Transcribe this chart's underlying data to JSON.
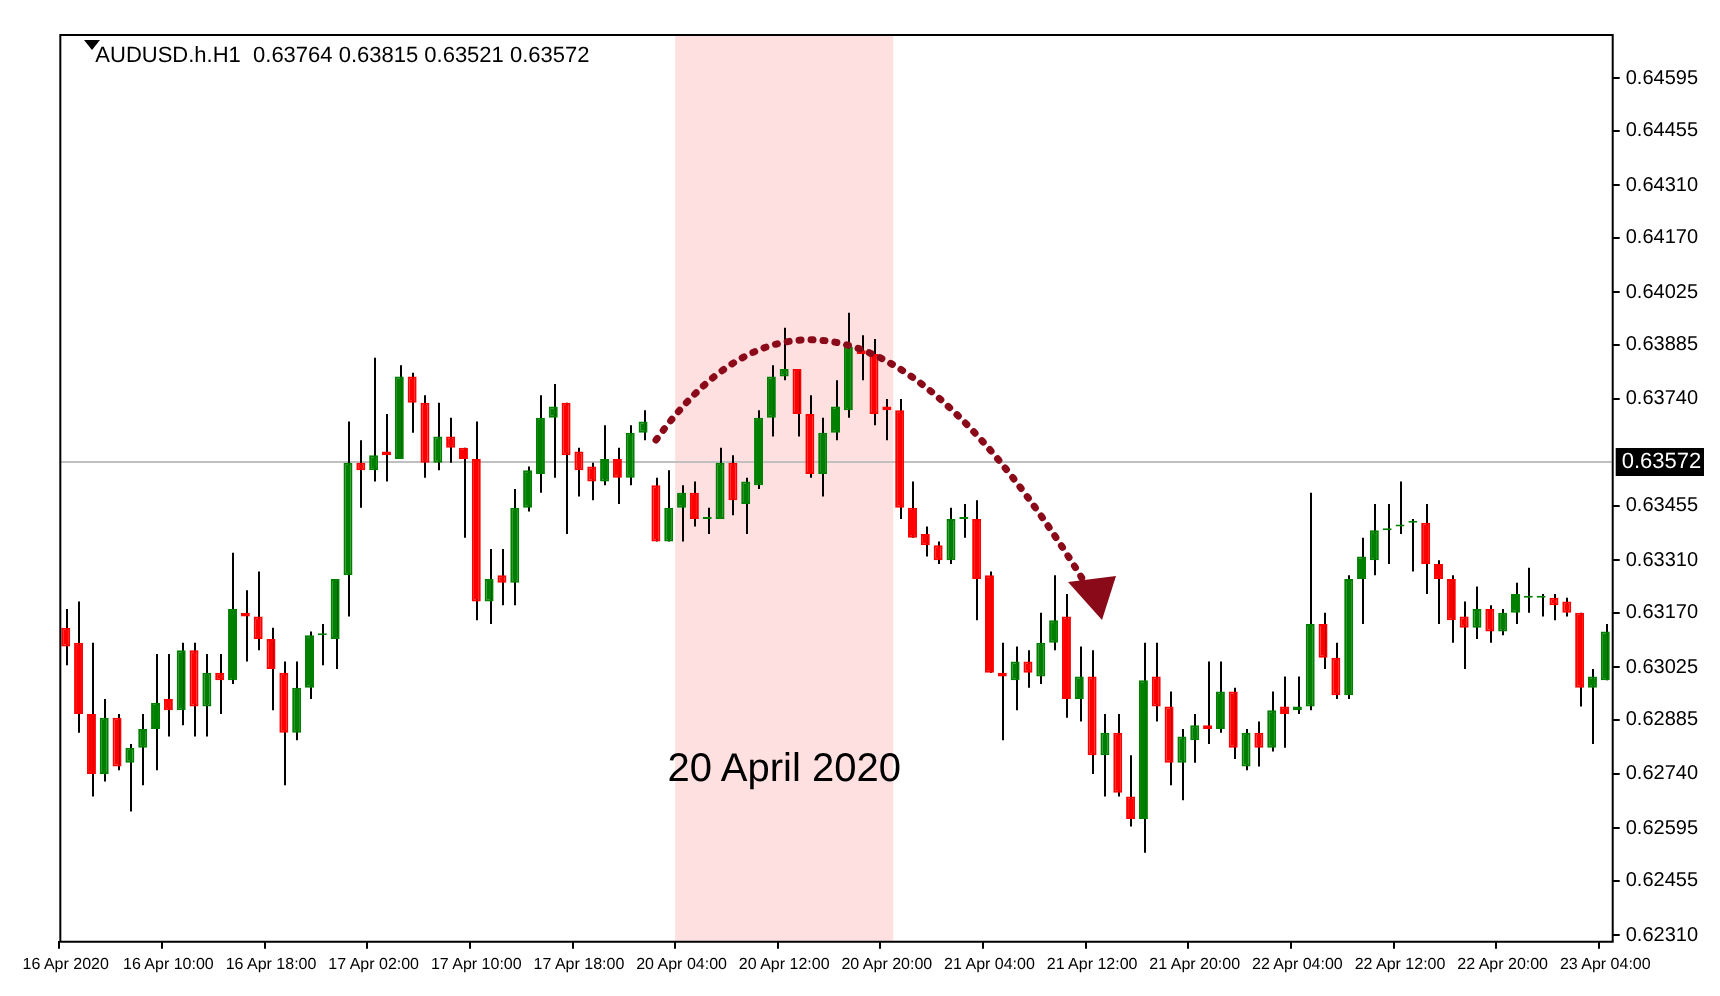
{
  "chart_data": {
    "type": "candlestick",
    "title": "AUDUSD.h.H1  0.63764 0.63815 0.63521 0.63572",
    "categories": [
      "16 Apr 2020",
      null,
      null,
      null,
      null,
      null,
      null,
      null,
      "16 Apr 10:00",
      null,
      null,
      null,
      null,
      null,
      null,
      null,
      "16 Apr 18:00",
      null,
      null,
      null,
      null,
      null,
      null,
      null,
      "17 Apr 02:00",
      null,
      null,
      null,
      null,
      null,
      null,
      null,
      "17 Apr 10:00",
      null,
      null,
      null,
      null,
      null,
      null,
      null,
      "17 Apr 18:00",
      null,
      null,
      null,
      null,
      null,
      null,
      null,
      "20 Apr 04:00",
      null,
      null,
      null,
      null,
      null,
      null,
      null,
      "20 Apr 12:00",
      null,
      null,
      null,
      null,
      null,
      null,
      null,
      "20 Apr 20:00",
      null,
      null,
      null,
      null,
      null,
      null,
      null,
      "21 Apr 04:00",
      null,
      null,
      null,
      null,
      null,
      null,
      null,
      "21 Apr 12:00",
      null,
      null,
      null,
      null,
      null,
      null,
      null,
      "21 Apr 20:00",
      null,
      null,
      null,
      null,
      null,
      null,
      null,
      "22 Apr 04:00",
      null,
      null,
      null,
      null,
      null,
      null,
      null,
      "22 Apr 12:00",
      null,
      null,
      null,
      null,
      null,
      null,
      null,
      "22 Apr 20:00",
      null,
      null,
      null,
      null,
      null,
      null,
      null,
      "23 Apr 04:00"
    ],
    "ohlc": [
      [
        0.6313,
        0.6318,
        0.6303,
        0.6308
      ],
      [
        0.6309,
        0.632,
        0.6285,
        0.629
      ],
      [
        0.629,
        0.6309,
        0.6268,
        0.6274
      ],
      [
        0.6274,
        0.6294,
        0.6272,
        0.6289
      ],
      [
        0.6289,
        0.629,
        0.6275,
        0.6276
      ],
      [
        0.6277,
        0.6282,
        0.6264,
        0.6281
      ],
      [
        0.6281,
        0.629,
        0.6271,
        0.6286
      ],
      [
        0.6286,
        0.6306,
        0.6275,
        0.6293
      ],
      [
        0.6294,
        0.6306,
        0.6284,
        0.6291
      ],
      [
        0.6291,
        0.6309,
        0.6287,
        0.6307
      ],
      [
        0.6307,
        0.6309,
        0.6284,
        0.6292
      ],
      [
        0.6292,
        0.6306,
        0.6284,
        0.6301
      ],
      [
        0.6301,
        0.6306,
        0.629,
        0.6299
      ],
      [
        0.6299,
        0.6333,
        0.6298,
        0.6318
      ],
      [
        0.6317,
        0.6323,
        0.6304,
        0.6316
      ],
      [
        0.6316,
        0.6328,
        0.6307,
        0.631
      ],
      [
        0.631,
        0.6313,
        0.6291,
        0.6302
      ],
      [
        0.6301,
        0.6304,
        0.6271,
        0.6285
      ],
      [
        0.6285,
        0.6304,
        0.6283,
        0.6297
      ],
      [
        0.6297,
        0.6312,
        0.6294,
        0.6311
      ],
      [
        0.6311,
        0.6314,
        0.6303,
        0.6311
      ],
      [
        0.631,
        0.6326,
        0.6302,
        0.6326
      ],
      [
        0.6327,
        0.6368,
        0.6316,
        0.6357
      ],
      [
        0.6357,
        0.6363,
        0.6345,
        0.6355
      ],
      [
        0.6355,
        0.6385,
        0.6352,
        0.6359
      ],
      [
        0.636,
        0.637,
        0.6352,
        0.6359
      ],
      [
        0.6358,
        0.6383,
        0.6358,
        0.638
      ],
      [
        0.638,
        0.6381,
        0.6365,
        0.6373
      ],
      [
        0.6373,
        0.6375,
        0.6353,
        0.6357
      ],
      [
        0.6357,
        0.6373,
        0.6355,
        0.6364
      ],
      [
        0.6364,
        0.6369,
        0.6357,
        0.6361
      ],
      [
        0.6361,
        0.6361,
        0.6337,
        0.6358
      ],
      [
        0.6358,
        0.6368,
        0.6315,
        0.632
      ],
      [
        0.632,
        0.6334,
        0.6314,
        0.6326
      ],
      [
        0.6327,
        0.6334,
        0.6319,
        0.6325
      ],
      [
        0.6325,
        0.635,
        0.6319,
        0.6345
      ],
      [
        0.6345,
        0.6356,
        0.6344,
        0.6355
      ],
      [
        0.6354,
        0.6375,
        0.6349,
        0.6369
      ],
      [
        0.6369,
        0.6378,
        0.6353,
        0.6372
      ],
      [
        0.6373,
        0.6373,
        0.6338,
        0.6359
      ],
      [
        0.636,
        0.6361,
        0.6348,
        0.6355
      ],
      [
        0.6356,
        0.6357,
        0.6347,
        0.6352
      ],
      [
        0.6352,
        0.6367,
        0.6351,
        0.6358
      ],
      [
        0.6358,
        0.6361,
        0.6346,
        0.6353
      ],
      [
        0.6353,
        0.6367,
        0.6351,
        0.6365
      ],
      [
        0.6365,
        0.6371,
        0.6363,
        0.6368
      ],
      [
        0.6351,
        0.6353,
        0.6336,
        0.6336
      ],
      [
        0.6336,
        0.6355,
        0.6336,
        0.6345
      ],
      [
        0.6345,
        0.6351,
        0.6336,
        0.6349
      ],
      [
        0.6349,
        0.6352,
        0.634,
        0.6342
      ],
      [
        0.6342,
        0.6345,
        0.6338,
        0.6342
      ],
      [
        0.6342,
        0.6361,
        0.6342,
        0.6357
      ],
      [
        0.6357,
        0.6359,
        0.6343,
        0.6347
      ],
      [
        0.6346,
        0.6353,
        0.6338,
        0.6352
      ],
      [
        0.6351,
        0.6371,
        0.635,
        0.6369
      ],
      [
        0.6369,
        0.6383,
        0.6364,
        0.638
      ],
      [
        0.638,
        0.6393,
        0.6379,
        0.6382
      ],
      [
        0.6382,
        0.6382,
        0.6364,
        0.637
      ],
      [
        0.637,
        0.6375,
        0.6353,
        0.6354
      ],
      [
        0.6354,
        0.6369,
        0.6348,
        0.6365
      ],
      [
        0.6365,
        0.6379,
        0.6363,
        0.6372
      ],
      [
        0.6371,
        0.6397,
        0.6369,
        0.6388
      ],
      [
        0.6387,
        0.6391,
        0.6379,
        0.6386
      ],
      [
        0.6386,
        0.639,
        0.6367,
        0.637
      ],
      [
        0.6372,
        0.6374,
        0.6363,
        0.6371
      ],
      [
        0.6371,
        0.6374,
        0.6342,
        0.6345
      ],
      [
        0.6345,
        0.6352,
        0.6337,
        0.6337
      ],
      [
        0.6338,
        0.634,
        0.6332,
        0.6335
      ],
      [
        0.6335,
        0.6336,
        0.633,
        0.6331
      ],
      [
        0.6331,
        0.6345,
        0.633,
        0.6342
      ],
      [
        0.6342,
        0.6346,
        0.6337,
        0.6342
      ],
      [
        0.6342,
        0.6347,
        0.6315,
        0.6326
      ],
      [
        0.6327,
        0.6328,
        0.6301,
        0.6301
      ],
      [
        0.6301,
        0.6309,
        0.6283,
        0.63
      ],
      [
        0.6299,
        0.6308,
        0.6291,
        0.6304
      ],
      [
        0.6304,
        0.6307,
        0.6297,
        0.6301
      ],
      [
        0.63,
        0.6317,
        0.6298,
        0.6309
      ],
      [
        0.6309,
        0.6327,
        0.6307,
        0.6315
      ],
      [
        0.6316,
        0.6322,
        0.6289,
        0.6294
      ],
      [
        0.6294,
        0.6308,
        0.6288,
        0.63
      ],
      [
        0.63,
        0.6307,
        0.6274,
        0.6279
      ],
      [
        0.6279,
        0.629,
        0.6268,
        0.6285
      ],
      [
        0.6285,
        0.629,
        0.6268,
        0.6269
      ],
      [
        0.6268,
        0.6279,
        0.626,
        0.6262
      ],
      [
        0.6262,
        0.6309,
        0.6253,
        0.6299
      ],
      [
        0.63,
        0.6309,
        0.6288,
        0.6292
      ],
      [
        0.6292,
        0.6296,
        0.6271,
        0.6277
      ],
      [
        0.6277,
        0.6286,
        0.6267,
        0.6284
      ],
      [
        0.6283,
        0.629,
        0.6277,
        0.6287
      ],
      [
        0.6287,
        0.6304,
        0.6282,
        0.6286
      ],
      [
        0.6286,
        0.6304,
        0.6285,
        0.6296
      ],
      [
        0.6296,
        0.6297,
        0.6278,
        0.6281
      ],
      [
        0.6276,
        0.6286,
        0.6275,
        0.6285
      ],
      [
        0.6285,
        0.6288,
        0.6276,
        0.6281
      ],
      [
        0.6281,
        0.6296,
        0.628,
        0.6291
      ],
      [
        0.6292,
        0.63,
        0.6281,
        0.629
      ],
      [
        0.6291,
        0.63,
        0.629,
        0.6292
      ],
      [
        0.6292,
        0.6349,
        0.6291,
        0.6314
      ],
      [
        0.6314,
        0.6317,
        0.6302,
        0.6305
      ],
      [
        0.6305,
        0.6309,
        0.6294,
        0.6295
      ],
      [
        0.6295,
        0.6327,
        0.6294,
        0.6326
      ],
      [
        0.6326,
        0.6337,
        0.6314,
        0.6332
      ],
      [
        0.6331,
        0.6346,
        0.6327,
        0.6339
      ],
      [
        0.6339,
        0.6346,
        0.633,
        0.6339
      ],
      [
        0.634,
        0.6352,
        0.6338,
        0.634
      ],
      [
        0.6341,
        0.6342,
        0.6328,
        0.6341
      ],
      [
        0.6341,
        0.6346,
        0.6322,
        0.633
      ],
      [
        0.633,
        0.6331,
        0.6314,
        0.6326
      ],
      [
        0.6326,
        0.6327,
        0.6309,
        0.6315
      ],
      [
        0.6316,
        0.632,
        0.6302,
        0.6313
      ],
      [
        0.6313,
        0.6324,
        0.631,
        0.6318
      ],
      [
        0.6318,
        0.6319,
        0.6309,
        0.6312
      ],
      [
        0.6312,
        0.6318,
        0.6311,
        0.6317
      ],
      [
        0.6317,
        0.6325,
        0.6314,
        0.6322
      ],
      [
        0.6321,
        0.6329,
        0.6317,
        0.6321
      ],
      [
        0.6321,
        0.6322,
        0.6316,
        0.6321
      ],
      [
        0.6321,
        0.6322,
        0.6315,
        0.6319
      ],
      [
        0.632,
        0.6321,
        0.6316,
        0.6317
      ],
      [
        0.6317,
        0.6317,
        0.6292,
        0.6297
      ],
      [
        0.6297,
        0.6302,
        0.6282,
        0.63
      ],
      [
        0.6299,
        0.6314,
        0.6299,
        0.6312
      ]
    ],
    "colors": [
      "#ff0000",
      "#ff0000",
      "#ff0000",
      "#008000",
      "#ff0000",
      "#008000",
      "#008000",
      "#008000",
      "#ff0000",
      "#008000",
      "#ff0000",
      "#008000",
      "#ff0000",
      "#008000",
      "#ff0000",
      "#ff0000",
      "#ff0000",
      "#ff0000",
      "#008000",
      "#008000",
      "#008000",
      "#008000",
      "#008000",
      "#ff0000",
      "#008000",
      "#ff0000",
      "#008000",
      "#ff0000",
      "#ff0000",
      "#008000",
      "#ff0000",
      "#ff0000",
      "#ff0000",
      "#008000",
      "#ff0000",
      "#008000",
      "#008000",
      "#008000",
      "#008000",
      "#ff0000",
      "#ff0000",
      "#ff0000",
      "#008000",
      "#ff0000",
      "#008000",
      "#008000",
      "#ff0000",
      "#008000",
      "#008000",
      "#ff0000",
      "#008000",
      "#008000",
      "#ff0000",
      "#008000",
      "#008000",
      "#008000",
      "#008000",
      "#ff0000",
      "#ff0000",
      "#008000",
      "#008000",
      "#008000",
      "#ff0000",
      "#ff0000",
      "#ff0000",
      "#ff0000",
      "#ff0000",
      "#ff0000",
      "#ff0000",
      "#008000",
      "#008000",
      "#ff0000",
      "#ff0000",
      "#ff0000",
      "#008000",
      "#ff0000",
      "#008000",
      "#008000",
      "#ff0000",
      "#008000",
      "#ff0000",
      "#008000",
      "#ff0000",
      "#ff0000",
      "#008000",
      "#ff0000",
      "#ff0000",
      "#008000",
      "#008000",
      "#ff0000",
      "#008000",
      "#ff0000",
      "#008000",
      "#ff0000",
      "#008000",
      "#ff0000",
      "#008000",
      "#008000",
      "#ff0000",
      "#ff0000",
      "#008000",
      "#008000",
      "#008000",
      "#008000",
      "#008000",
      "#008000",
      "#ff0000",
      "#ff0000",
      "#ff0000",
      "#ff0000",
      "#008000",
      "#ff0000",
      "#008000",
      "#008000",
      "#008000",
      "#008000",
      "#ff0000",
      "#ff0000",
      "#ff0000",
      "#008000",
      "#008000"
    ],
    "ylim": [
      0.62295,
      0.64713
    ],
    "yticks": [
      {
        "value": 0.6231,
        "label": "0.62310"
      },
      0.62455,
      0.62595,
      {
        "value": 0.6274,
        "label": "0.62740"
      },
      0.62885,
      0.63025,
      {
        "value": 0.6317,
        "label": "0.63170"
      },
      {
        "value": 0.6331,
        "label": "0.63310"
      },
      0.63455,
      {
        "value": 0.6374,
        "label": "0.63740"
      },
      0.63885,
      0.64025,
      {
        "value": 0.6417,
        "label": "0.64170"
      },
      {
        "value": 0.6431,
        "label": "0.64310"
      },
      0.64455,
      0.64595
    ],
    "ref_lines": [
      {
        "axis": "y",
        "value": 0.63572,
        "label": "0.63572",
        "color": "#c0c0c0"
      }
    ],
    "bands": [
      {
        "axis": "x",
        "from": "20 Apr 04:00",
        "to": "20 Apr 20:00",
        "label": "20 April 2020",
        "color": "#ffe0e0"
      }
    ]
  }
}
